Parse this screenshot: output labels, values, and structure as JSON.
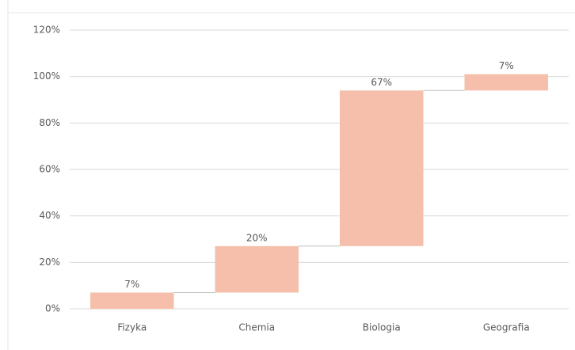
{
  "chart_data": {
    "type": "waterfall",
    "categories": [
      "Fizyka",
      "Chemia",
      "Biologia",
      "Geografia"
    ],
    "values": [
      7,
      20,
      67,
      7
    ],
    "value_labels": [
      "7%",
      "20%",
      "67%",
      "7%"
    ],
    "color": "#f5bfab",
    "ylim": [
      0,
      120
    ],
    "yticks": [
      {
        "value": 0,
        "label": "0%"
      },
      {
        "value": 20,
        "label": "20%"
      },
      {
        "value": 40,
        "label": "40%"
      },
      {
        "value": 60,
        "label": "60%"
      },
      {
        "value": 80,
        "label": "80%"
      },
      {
        "value": 100,
        "label": "100%"
      },
      {
        "value": 120,
        "label": "120%"
      }
    ],
    "grid": true
  }
}
